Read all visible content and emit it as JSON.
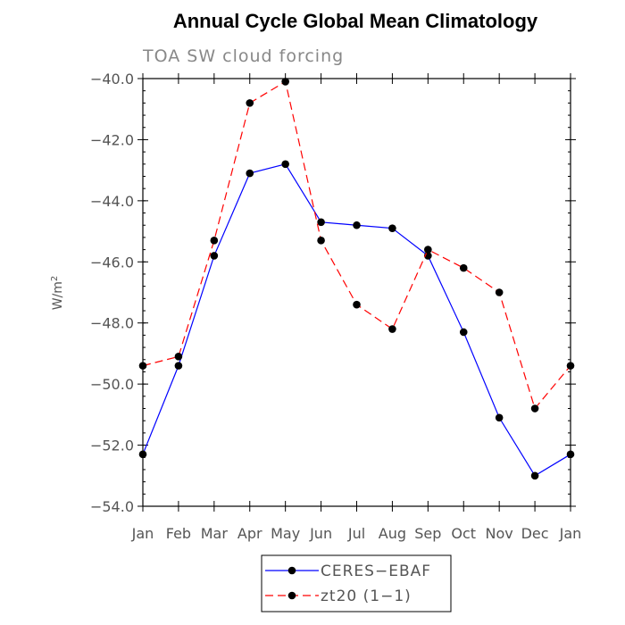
{
  "chart_data": {
    "type": "line",
    "title": "Annual Cycle Global Mean Climatology",
    "subtitle": "TOA SW cloud forcing",
    "ylabel": "W/m",
    "ylabel_superscript": "2",
    "xlabel": "",
    "categories": [
      "Jan",
      "Feb",
      "Mar",
      "Apr",
      "May",
      "Jun",
      "Jul",
      "Aug",
      "Sep",
      "Oct",
      "Nov",
      "Dec",
      "Jan"
    ],
    "ylim": [
      -54.0,
      -40.0
    ],
    "yticks": [
      -54.0,
      -52.0,
      -50.0,
      -48.0,
      -46.0,
      -44.0,
      -42.0,
      -40.0
    ],
    "ytick_labels": [
      "−54.0",
      "−52.0",
      "−50.0",
      "−48.0",
      "−46.0",
      "−44.0",
      "−42.0",
      "−40.0"
    ],
    "grid": false,
    "legend_position": "bottom-center",
    "series": [
      {
        "name": "CERES−EBAF",
        "color": "#0000ff",
        "dash": "solid",
        "marker": "circle",
        "values": [
          -52.3,
          -49.4,
          -45.8,
          -43.1,
          -42.8,
          -44.7,
          -44.8,
          -44.9,
          -45.8,
          -48.3,
          -51.1,
          -53.0,
          -52.3
        ]
      },
      {
        "name": "zt20 (1−1)",
        "color": "#ff0000",
        "dash": "dashed",
        "marker": "circle",
        "values": [
          -49.4,
          -49.1,
          -45.3,
          -40.8,
          -40.1,
          -45.3,
          -47.4,
          -48.2,
          -45.6,
          -46.2,
          -47.0,
          -50.8,
          -49.4
        ]
      }
    ]
  }
}
